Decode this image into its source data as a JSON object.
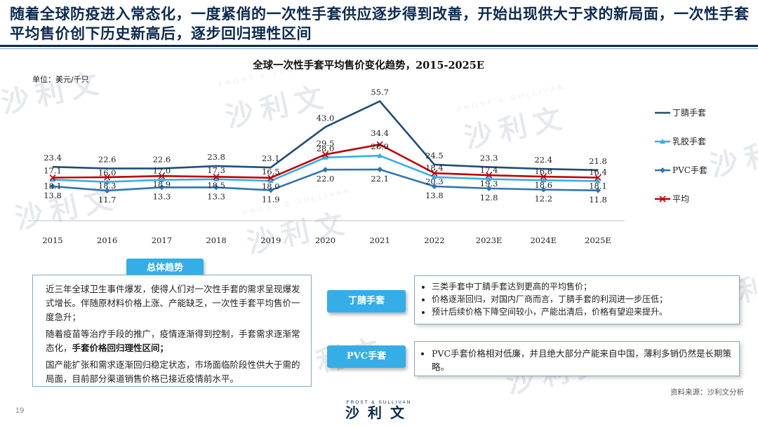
{
  "headline": "随着全球防疫进入常态化，一度紧俏的一次性手套供应逐步得到改善，开始出现供大于求的新局面，一次性手套平均售价创下历史新高后，逐步回归理性区间",
  "colors": {
    "navy": "#0b2a4f",
    "nitrile": "#1f4e79",
    "latex": "#35aee8",
    "pvc": "#2e75b6",
    "average": "#c00000",
    "accent": "#35aee8"
  },
  "chart_data": {
    "type": "line",
    "title": "全球一次性手套平均售价变化趋势，2015-2025E",
    "unit_label": "单位：美元/千只",
    "categories": [
      "2015",
      "2016",
      "2017",
      "2018",
      "2019",
      "2020",
      "2021",
      "2022",
      "2023E",
      "2024E",
      "2025E"
    ],
    "ylim": [
      0,
      60
    ],
    "legend_position": "right",
    "series": [
      {
        "name": "丁腈手套",
        "color": "#1f4e79",
        "marker": "none",
        "labels": "above",
        "values": [
          23.4,
          22.6,
          22.6,
          23.8,
          23.1,
          43.0,
          55.7,
          24.5,
          23.3,
          22.4,
          21.8
        ]
      },
      {
        "name": "乳胶手套",
        "color": "#35aee8",
        "marker": "triangle",
        "labels": "above",
        "values": [
          17.1,
          16.0,
          17.0,
          17.3,
          16.5,
          28.0,
          28.9,
          18.4,
          17.4,
          16.8,
          16.4
        ]
      },
      {
        "name": "PVC手套",
        "color": "#2e75b6",
        "marker": "diamond",
        "labels": "below",
        "values": [
          13.8,
          11.7,
          13.3,
          13.3,
          11.9,
          22.0,
          22.1,
          13.8,
          12.8,
          12.2,
          11.8
        ]
      },
      {
        "name": "平均",
        "color": "#c00000",
        "marker": "x",
        "labels": "mixed",
        "values": [
          18.1,
          18.3,
          18.9,
          18.5,
          18.0,
          29.5,
          34.4,
          20.3,
          19.3,
          18.6,
          18.1
        ]
      }
    ]
  },
  "overview": {
    "tag": "总体趋势",
    "p1": "近三年全球卫生事件爆发，使得人们对一次性手套的需求呈现爆发式增长。伴随原材料价格上涨、产能缺乏，一次性手套平均售价一度急升；",
    "p2_pre": "随着疫苗等治疗手段的推广，疫情逐渐得到控制，手套需求逐渐常态化，",
    "p2_bold": "手套价格回归理性区间；",
    "p3": "国产能扩张和需求逐渐回归稳定状态，市场面临阶段性供大于需的局面，目前部分渠道销售价格已接近疫情前水平。"
  },
  "nitrile_card": {
    "tag": "丁腈手套",
    "bullets": [
      "三类手套中丁腈手套达到更高的平均售价；",
      "价格逐渐回归，对国内厂商而言，丁腈手套的利润进一步压低；",
      "预计后续价格下降空间较小，产能出清后，价格有望迎来提升。"
    ]
  },
  "pvc_card": {
    "tag": "PVC手套",
    "bullets": [
      "PVC手套价格相对低廉，并且绝大部分产能来自中国，薄利多销仍然是长期策略。"
    ]
  },
  "source": "资料来源：沙利文分析",
  "page_number": "19",
  "logo": {
    "en": "FROST & SULLIVAN",
    "cn": "沙利文"
  }
}
